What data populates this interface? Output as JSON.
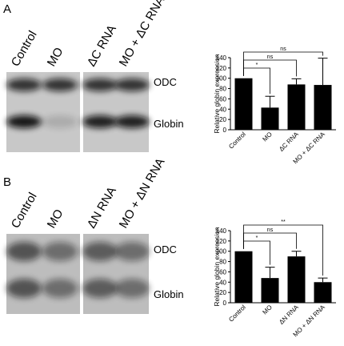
{
  "chart_data": [
    {
      "type": "bar",
      "panel": "A",
      "lanes": [
        "Control",
        "MO",
        "ΔC RNA",
        "MO + ΔC RNA"
      ],
      "bands": [
        "ODC",
        "Globin"
      ],
      "y_label": "Relative globin expression",
      "categories": [
        "Control",
        "MO",
        "ΔC RNA",
        "MO + ΔC RNA"
      ],
      "values": [
        100,
        43,
        88,
        87
      ],
      "errors": [
        0,
        22,
        11,
        52
      ],
      "color": "#000000",
      "ylim": [
        0,
        140
      ],
      "yticks": [
        0,
        20,
        40,
        60,
        80,
        100,
        120,
        140
      ],
      "comparisons": [
        "*",
        "ns",
        "ns"
      ]
    },
    {
      "type": "bar",
      "panel": "B",
      "lanes": [
        "Control",
        "MO",
        "ΔN RNA",
        "MO + ΔN RNA"
      ],
      "bands": [
        "ODC",
        "Globin"
      ],
      "y_label": "Relative globin expression",
      "categories": [
        "Control",
        "MO",
        "ΔN RNA",
        "MO + ΔN RNA"
      ],
      "values": [
        100,
        48,
        90,
        40
      ],
      "errors": [
        0,
        21,
        10,
        8
      ],
      "color": "#000000",
      "ylim": [
        0,
        140
      ],
      "yticks": [
        0,
        20,
        40,
        60,
        80,
        100,
        120,
        140
      ],
      "comparisons": [
        "*",
        "ns",
        "**"
      ]
    }
  ]
}
